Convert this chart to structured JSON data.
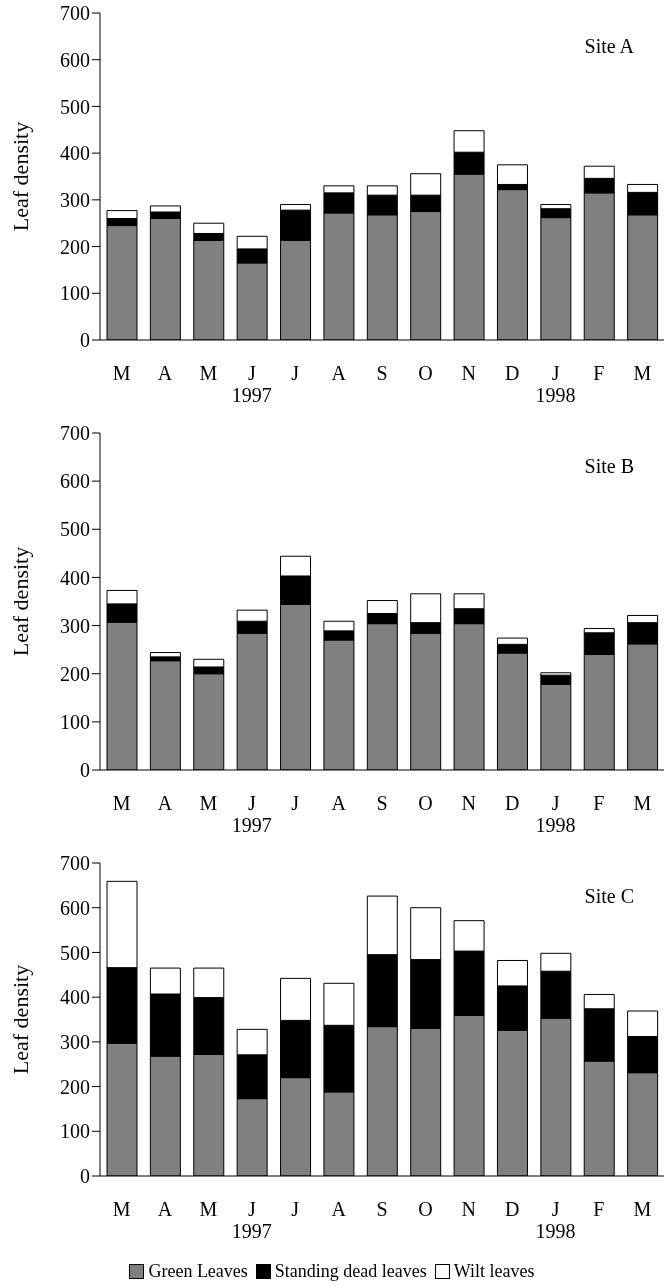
{
  "chart_data": [
    {
      "type": "bar",
      "title": "Site A",
      "ylabel": "Leaf density",
      "stacked": true,
      "legend": false,
      "ylim": [
        0,
        700
      ],
      "yticks": [
        0,
        100,
        200,
        300,
        400,
        500,
        600,
        700
      ],
      "categories": [
        "M",
        "A",
        "M",
        "J",
        "J",
        "A",
        "S",
        "O",
        "N",
        "D",
        "J",
        "F",
        "M"
      ],
      "annotations": [
        "1997",
        "1998"
      ],
      "series": [
        {
          "color": "#808080",
          "values": [
            245,
            260,
            213,
            165,
            213,
            272,
            268,
            275,
            355,
            322,
            262,
            315,
            268
          ]
        },
        {
          "color": "#000000",
          "values": [
            15,
            14,
            15,
            30,
            65,
            43,
            42,
            35,
            47,
            11,
            19,
            31,
            48
          ]
        },
        {
          "color": "#ffffff",
          "values": [
            17,
            13,
            22,
            27,
            12,
            15,
            20,
            46,
            46,
            42,
            9,
            26,
            17
          ]
        }
      ]
    },
    {
      "type": "bar",
      "title": "Site B",
      "ylabel": "Leaf density",
      "stacked": true,
      "legend": false,
      "ylim": [
        0,
        700
      ],
      "yticks": [
        0,
        100,
        200,
        300,
        400,
        500,
        600,
        700
      ],
      "categories": [
        "M",
        "A",
        "M",
        "J",
        "J",
        "A",
        "S",
        "O",
        "N",
        "D",
        "J",
        "F",
        "M"
      ],
      "annotations": [
        "1997",
        "1998"
      ],
      "series": [
        {
          "color": "#808080",
          "values": [
            307,
            227,
            200,
            284,
            344,
            270,
            304,
            284,
            304,
            243,
            178,
            240,
            262
          ]
        },
        {
          "color": "#000000",
          "values": [
            38,
            8,
            14,
            25,
            59,
            19,
            21,
            22,
            31,
            18,
            19,
            45,
            44
          ]
        },
        {
          "color": "#ffffff",
          "values": [
            28,
            9,
            16,
            23,
            41,
            20,
            27,
            60,
            31,
            13,
            5,
            9,
            15
          ]
        }
      ]
    },
    {
      "type": "bar",
      "title": "Site C",
      "ylabel": "Leaf density",
      "stacked": true,
      "legend": "bottom",
      "ylim": [
        0,
        700
      ],
      "yticks": [
        0,
        100,
        200,
        300,
        400,
        500,
        600,
        700
      ],
      "categories": [
        "M",
        "A",
        "M",
        "J",
        "J",
        "A",
        "S",
        "O",
        "N",
        "D",
        "J",
        "F",
        "M"
      ],
      "annotations": [
        "1997",
        "1998"
      ],
      "series": [
        {
          "name": "Green Leaves",
          "color": "#808080",
          "values": [
            297,
            268,
            272,
            173,
            220,
            188,
            334,
            330,
            359,
            326,
            353,
            257,
            231
          ]
        },
        {
          "name": "Standing dead leaves",
          "color": "#000000",
          "values": [
            169,
            139,
            127,
            98,
            128,
            149,
            161,
            154,
            144,
            99,
            105,
            117,
            81
          ]
        },
        {
          "name": "Wilt leaves",
          "color": "#ffffff",
          "values": [
            193,
            58,
            66,
            57,
            94,
            94,
            131,
            116,
            68,
            57,
            40,
            32,
            57
          ]
        }
      ]
    }
  ]
}
